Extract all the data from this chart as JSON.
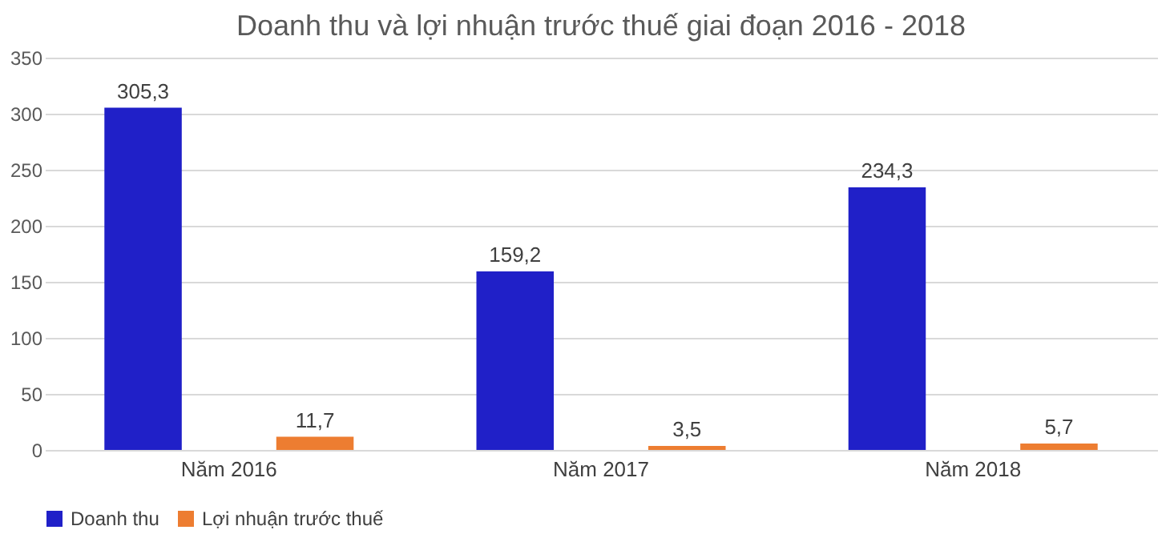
{
  "chart_data": {
    "type": "bar",
    "title": "Doanh thu và lợi nhuận trước thuế giai đoạn 2016 - 2018",
    "categories": [
      "Năm 2016",
      "Năm 2017",
      "Năm 2018"
    ],
    "series": [
      {
        "name": "Doanh thu",
        "color": "#2020c8",
        "values": [
          305.3,
          159.2,
          234.3
        ],
        "value_labels": [
          "305,3",
          "159,2",
          "234,3"
        ]
      },
      {
        "name": "Lợi nhuận trước thuế",
        "color": "#ed7d31",
        "values": [
          11.7,
          3.5,
          5.7
        ],
        "value_labels": [
          "11,7",
          "3,5",
          "5,7"
        ]
      }
    ],
    "ylim": [
      0,
      350
    ],
    "yticks": [
      0,
      50,
      100,
      150,
      200,
      250,
      300,
      350
    ],
    "grid": "y",
    "legend": "bottom"
  }
}
